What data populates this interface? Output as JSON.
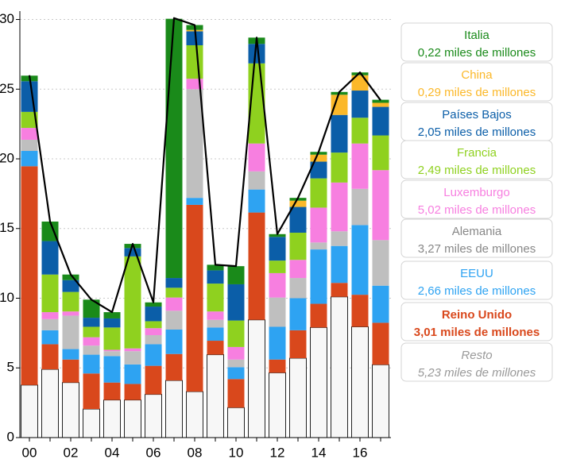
{
  "chart_data": {
    "type": "stacked-bar-line",
    "categories": [
      "00",
      null,
      "02",
      null,
      "04",
      null,
      "06",
      null,
      "08",
      null,
      "10",
      null,
      "12",
      null,
      "14",
      null,
      "16",
      null
    ],
    "ylim": [
      0,
      30.6
    ],
    "yticks": [
      0,
      5,
      10,
      15,
      20,
      25,
      30
    ],
    "grid": true,
    "series": [
      {
        "name": "Resto",
        "label": "5,23 miles de millones",
        "color": "#f7f7f7",
        "values": [
          3.77,
          4.9,
          3.95,
          2.05,
          2.7,
          2.7,
          3.1,
          4.1,
          3.3,
          5.95,
          2.15,
          8.45,
          4.65,
          5.7,
          7.9,
          10.1,
          7.95,
          5.23
        ]
      },
      {
        "name": "Reino Unido",
        "label": "3,01 miles de millones",
        "color": "#d9481c",
        "values": [
          15.7,
          1.8,
          1.65,
          2.55,
          1.25,
          1.15,
          2.05,
          1.9,
          13.4,
          1.0,
          2.05,
          7.7,
          0.95,
          2.0,
          1.7,
          1.0,
          2.3,
          3.01
        ]
      },
      {
        "name": "EEUU",
        "label": "2,66 miles de millones",
        "color": "#2ea3f2",
        "values": [
          1.1,
          1.0,
          0.75,
          1.35,
          1.9,
          1.4,
          1.55,
          1.75,
          0.5,
          0.95,
          0.85,
          1.65,
          2.35,
          2.3,
          3.9,
          2.65,
          5.0,
          2.66
        ]
      },
      {
        "name": "Alemania",
        "label": "3,27 miles de millones",
        "color": "#bfbfbf",
        "values": [
          0.8,
          0.8,
          2.4,
          0.65,
          0.35,
          0.95,
          0.65,
          1.35,
          7.8,
          0.55,
          0.55,
          1.3,
          2.1,
          1.45,
          0.5,
          1.05,
          2.6,
          3.27
        ]
      },
      {
        "name": "Luxemburgo",
        "label": "5,02 miles de millones",
        "color": "#f77fe0",
        "values": [
          0.85,
          0.5,
          0.3,
          0.6,
          0.1,
          0.2,
          0.5,
          0.95,
          0.75,
          0.6,
          0.9,
          2.0,
          1.75,
          1.3,
          2.5,
          3.5,
          3.25,
          5.02
        ]
      },
      {
        "name": "Francia",
        "label": "2,49 miles de millones",
        "color": "#8fd11f",
        "values": [
          1.15,
          2.7,
          1.4,
          0.75,
          1.6,
          6.6,
          0.5,
          0.7,
          2.4,
          2.0,
          1.9,
          5.75,
          0.9,
          1.95,
          2.1,
          2.15,
          1.85,
          2.49
        ]
      },
      {
        "name": "Países Bajos",
        "label": "2,05 miles de millones",
        "color": "#0b5ea8",
        "values": [
          2.2,
          2.4,
          0.85,
          0.65,
          0.65,
          0.6,
          1.05,
          0.7,
          1.0,
          0.95,
          2.6,
          1.4,
          1.7,
          1.85,
          1.2,
          2.7,
          1.95,
          2.05
        ]
      },
      {
        "name": "China",
        "label": "0,29 miles de millones",
        "color": "#fbb829",
        "values": [
          0,
          0,
          0,
          0,
          0,
          0,
          0,
          0,
          0.1,
          0,
          0,
          0,
          0,
          0.45,
          0.5,
          1.45,
          1.1,
          0.29
        ]
      },
      {
        "name": "Italia",
        "label": "0,22 miles de millones",
        "color": "#1a8a1a",
        "values": [
          0.4,
          1.4,
          0.4,
          1.3,
          0.45,
          0.3,
          0.3,
          18.6,
          0.35,
          0.4,
          1.3,
          0.45,
          0.2,
          0.2,
          0.2,
          0.2,
          0.2,
          0.22
        ]
      }
    ],
    "line_values": [
      26.0,
      15.5,
      11.7,
      9.9,
      9.0,
      13.9,
      9.7,
      30.1,
      29.6,
      12.4,
      12.3,
      28.7,
      14.6,
      17.2,
      20.5,
      24.8,
      26.2,
      24.2
    ],
    "line_color": "#000000"
  }
}
